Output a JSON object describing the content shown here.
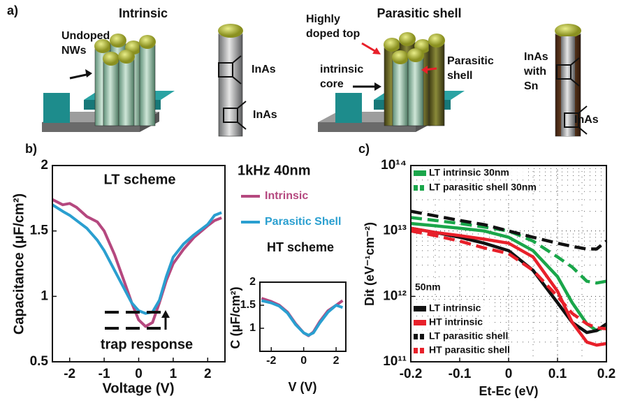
{
  "panel_labels": [
    "a)",
    "b)",
    "c)"
  ],
  "diagram": {
    "left_title": "Intrinsic",
    "left_labels": [
      [
        "Undoped",
        "NWs"
      ],
      [
        "InAs"
      ],
      [
        "InAs"
      ]
    ],
    "right_title": "Parasitic shell",
    "right_labels": [
      [
        "Highly",
        "doped top"
      ],
      [
        "Parasitic",
        "shell"
      ],
      [
        "intrinsic",
        "core"
      ],
      [
        "InAs",
        "with",
        "Sn"
      ],
      [
        "InAs"
      ]
    ]
  },
  "chart_data": [
    {
      "type": "line",
      "title": "LT scheme",
      "annotations": [
        "1kHz   40nm",
        "trap response"
      ],
      "x_label": "Voltage (V)",
      "y_label": "Capacitance (μF/cm²)",
      "x": [
        -2.5,
        -2.2,
        -2,
        -1.8,
        -1.5,
        -1.2,
        -1,
        -0.7,
        -0.4,
        -0.2,
        0,
        0.2,
        0.4,
        0.6,
        0.8,
        1,
        1.3,
        1.6,
        2,
        2.2,
        2.4
      ],
      "series": [
        {
          "name": "Intrinsic",
          "color": "#b5487f",
          "values": [
            1.74,
            1.7,
            1.71,
            1.68,
            1.61,
            1.57,
            1.5,
            1.32,
            1.1,
            0.95,
            0.82,
            0.77,
            0.8,
            0.95,
            1.12,
            1.25,
            1.36,
            1.45,
            1.54,
            1.58,
            1.6
          ]
        },
        {
          "name": "Parasitic Shell",
          "color": "#2a9fd0",
          "values": [
            1.7,
            1.65,
            1.62,
            1.58,
            1.52,
            1.43,
            1.35,
            1.2,
            1.05,
            0.95,
            0.89,
            0.87,
            0.88,
            0.97,
            1.15,
            1.3,
            1.4,
            1.47,
            1.55,
            1.62,
            1.64
          ]
        }
      ],
      "xlim": [
        -2.5,
        2.5
      ],
      "ylim": [
        0.5,
        2
      ],
      "xticks": [
        -2,
        -1,
        0,
        1,
        2
      ],
      "yticks": [
        0.5,
        1,
        1.5,
        2
      ],
      "grid": false
    },
    {
      "type": "line",
      "title": "HT scheme",
      "x_label": "V (V)",
      "y_label": "C (μF/cm²)",
      "x": [
        -2.6,
        -2,
        -1.5,
        -1,
        -0.5,
        0,
        0.3,
        0.6,
        1,
        1.5,
        2,
        2.4
      ],
      "series": [
        {
          "name": "Intrinsic",
          "color": "#b5487f",
          "values": [
            1.65,
            1.58,
            1.5,
            1.35,
            1.1,
            0.9,
            0.84,
            0.92,
            1.15,
            1.38,
            1.5,
            1.6
          ]
        },
        {
          "name": "Parasitic Shell",
          "color": "#2a9fd0",
          "values": [
            1.6,
            1.55,
            1.48,
            1.33,
            1.08,
            0.9,
            0.85,
            0.9,
            1.12,
            1.35,
            1.5,
            1.45
          ]
        }
      ],
      "xlim": [
        -2.7,
        2.6
      ],
      "ylim": [
        0.5,
        2
      ],
      "xticks": [
        -2,
        0,
        2
      ],
      "yticks": [
        1,
        1.5,
        2
      ],
      "grid": false
    },
    {
      "type": "line",
      "annotations": [
        "50nm"
      ],
      "x_label": "Et-Ec (eV)",
      "y_label": "Dit (eV⁻¹cm⁻²)",
      "log_y": true,
      "grid": true,
      "x": [
        -0.2,
        -0.15,
        -0.1,
        -0.05,
        0,
        0.05,
        0.1,
        0.13,
        0.16,
        0.18,
        0.2
      ],
      "series": [
        {
          "name": "LT intrinsic 30nm",
          "color": "#1aa64a",
          "dash": false,
          "values": [
            13000000000000.0,
            12000000000000.0,
            11000000000000.0,
            10000000000000.0,
            8000000000000.0,
            5000000000000.0,
            2000000000000.0,
            800000000000.0,
            380000000000.0,
            300000000000.0,
            350000000000.0
          ]
        },
        {
          "name": "LT parasitic shell 30nm",
          "color": "#1aa64a",
          "dash": true,
          "values": [
            16000000000000.0,
            14500000000000.0,
            13000000000000.0,
            11500000000000.0,
            10000000000000.0,
            7000000000000.0,
            4000000000000.0,
            2800000000000.0,
            1700000000000.0,
            1600000000000.0,
            1700000000000.0
          ]
        },
        {
          "name": "LT intrinsic",
          "color": "#111111",
          "dash": false,
          "values": [
            11000000000000.0,
            9500000000000.0,
            8000000000000.0,
            6500000000000.0,
            5000000000000.0,
            2500000000000.0,
            800000000000.0,
            400000000000.0,
            280000000000.0,
            300000000000.0,
            380000000000.0
          ]
        },
        {
          "name": "HT intrinsic",
          "color": "#e8202a",
          "dash": false,
          "values": [
            11000000000000.0,
            9500000000000.0,
            8500000000000.0,
            7500000000000.0,
            6500000000000.0,
            4000000000000.0,
            1200000000000.0,
            400000000000.0,
            200000000000.0,
            180000000000.0,
            190000000000.0
          ]
        },
        {
          "name": "LT parasitic shell",
          "color": "#111111",
          "dash": true,
          "values": [
            20000000000000.0,
            17000000000000.0,
            14500000000000.0,
            12500000000000.0,
            10000000000000.0,
            8000000000000.0,
            6500000000000.0,
            5800000000000.0,
            5300000000000.0,
            5300000000000.0,
            7000000000000.0
          ]
        },
        {
          "name": "HT parasitic shell",
          "color": "#e8202a",
          "dash": true,
          "values": [
            10000000000000.0,
            8500000000000.0,
            7000000000000.0,
            5500000000000.0,
            4500000000000.0,
            2500000000000.0,
            1000000000000.0,
            550000000000.0,
            380000000000.0,
            330000000000.0,
            320000000000.0
          ]
        }
      ],
      "xlim": [
        -0.2,
        0.2
      ],
      "ylim": [
        100000000000.0,
        100000000000000.0
      ],
      "xticks": [
        -0.2,
        -0.1,
        0,
        0.1,
        0.2
      ],
      "yticks": [
        {
          "value": 100000000000.0,
          "label": "10¹¹"
        },
        {
          "value": 1000000000000.0,
          "label": "10¹²"
        },
        {
          "value": 10000000000000.0,
          "label": "10¹³"
        },
        {
          "value": 100000000000000.0,
          "label": "10¹⁴"
        }
      ]
    }
  ]
}
